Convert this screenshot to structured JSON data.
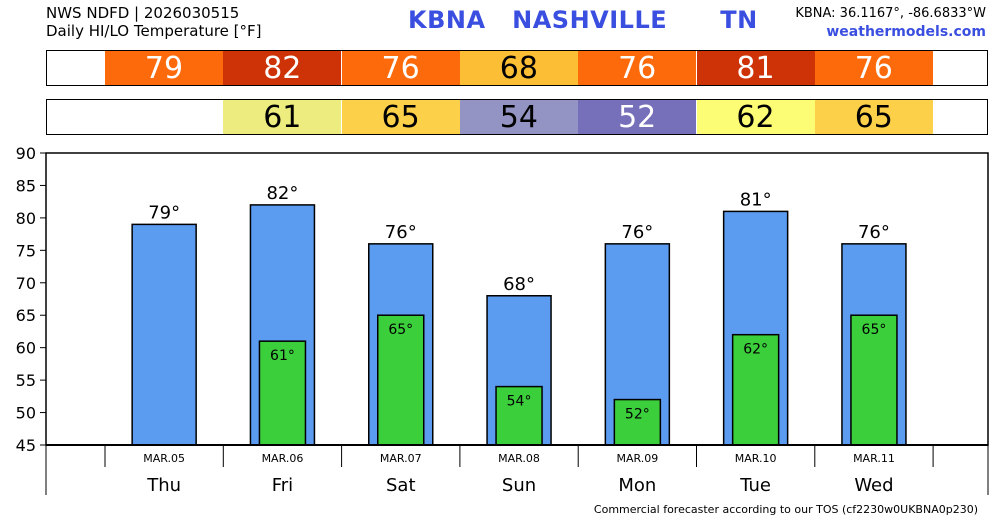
{
  "header": {
    "line1": "NWS NDFD | 2026030515",
    "line2": "Daily HI/LO Temperature [°F]",
    "station": "KBNA   NASHVILLE      TN",
    "coords": "KBNA: 36.1167°, -86.6833°W",
    "site": "weathermodels.com"
  },
  "colors": {
    "bar_high": "#5b9cf0",
    "bar_low": "#3ccf3c",
    "scale": {
      "52": "#7670bb",
      "54": "#9494c4",
      "61": "#ecec7f",
      "62": "#fdfd75",
      "65": "#fdd04a",
      "68": "#fcbe35",
      "76": "#fd6a0b",
      "79": "#fd6a0b",
      "81": "#cd3307",
      "82": "#cd3307"
    }
  },
  "hi_strip": [
    "79",
    "82",
    "76",
    "68",
    "76",
    "81",
    "76"
  ],
  "lo_strip": [
    "",
    "61",
    "65",
    "54",
    "52",
    "62",
    "65"
  ],
  "chart_data": {
    "type": "bar",
    "categories": [
      "Thu",
      "Fri",
      "Sat",
      "Sun",
      "Mon",
      "Tue",
      "Wed"
    ],
    "dates": [
      "MAR.05",
      "MAR.06",
      "MAR.07",
      "MAR.08",
      "MAR.09",
      "MAR.10",
      "MAR.11"
    ],
    "series": [
      {
        "values": [
          79,
          82,
          76,
          68,
          76,
          81,
          76
        ],
        "labels": [
          "79°",
          "82°",
          "76°",
          "68°",
          "76°",
          "81°",
          "76°"
        ]
      },
      {
        "values": [
          null,
          61,
          65,
          54,
          52,
          62,
          65
        ],
        "labels": [
          "",
          "61°",
          "65°",
          "54°",
          "52°",
          "62°",
          "65°"
        ]
      }
    ],
    "ylim": [
      45,
      90
    ],
    "yticks": [
      "45",
      "50",
      "55",
      "60",
      "65",
      "70",
      "75",
      "80",
      "85",
      "90"
    ],
    "grid": false
  },
  "footer": "Commercial forecaster according to our TOS (cf2230w0UKBNA0p230)"
}
